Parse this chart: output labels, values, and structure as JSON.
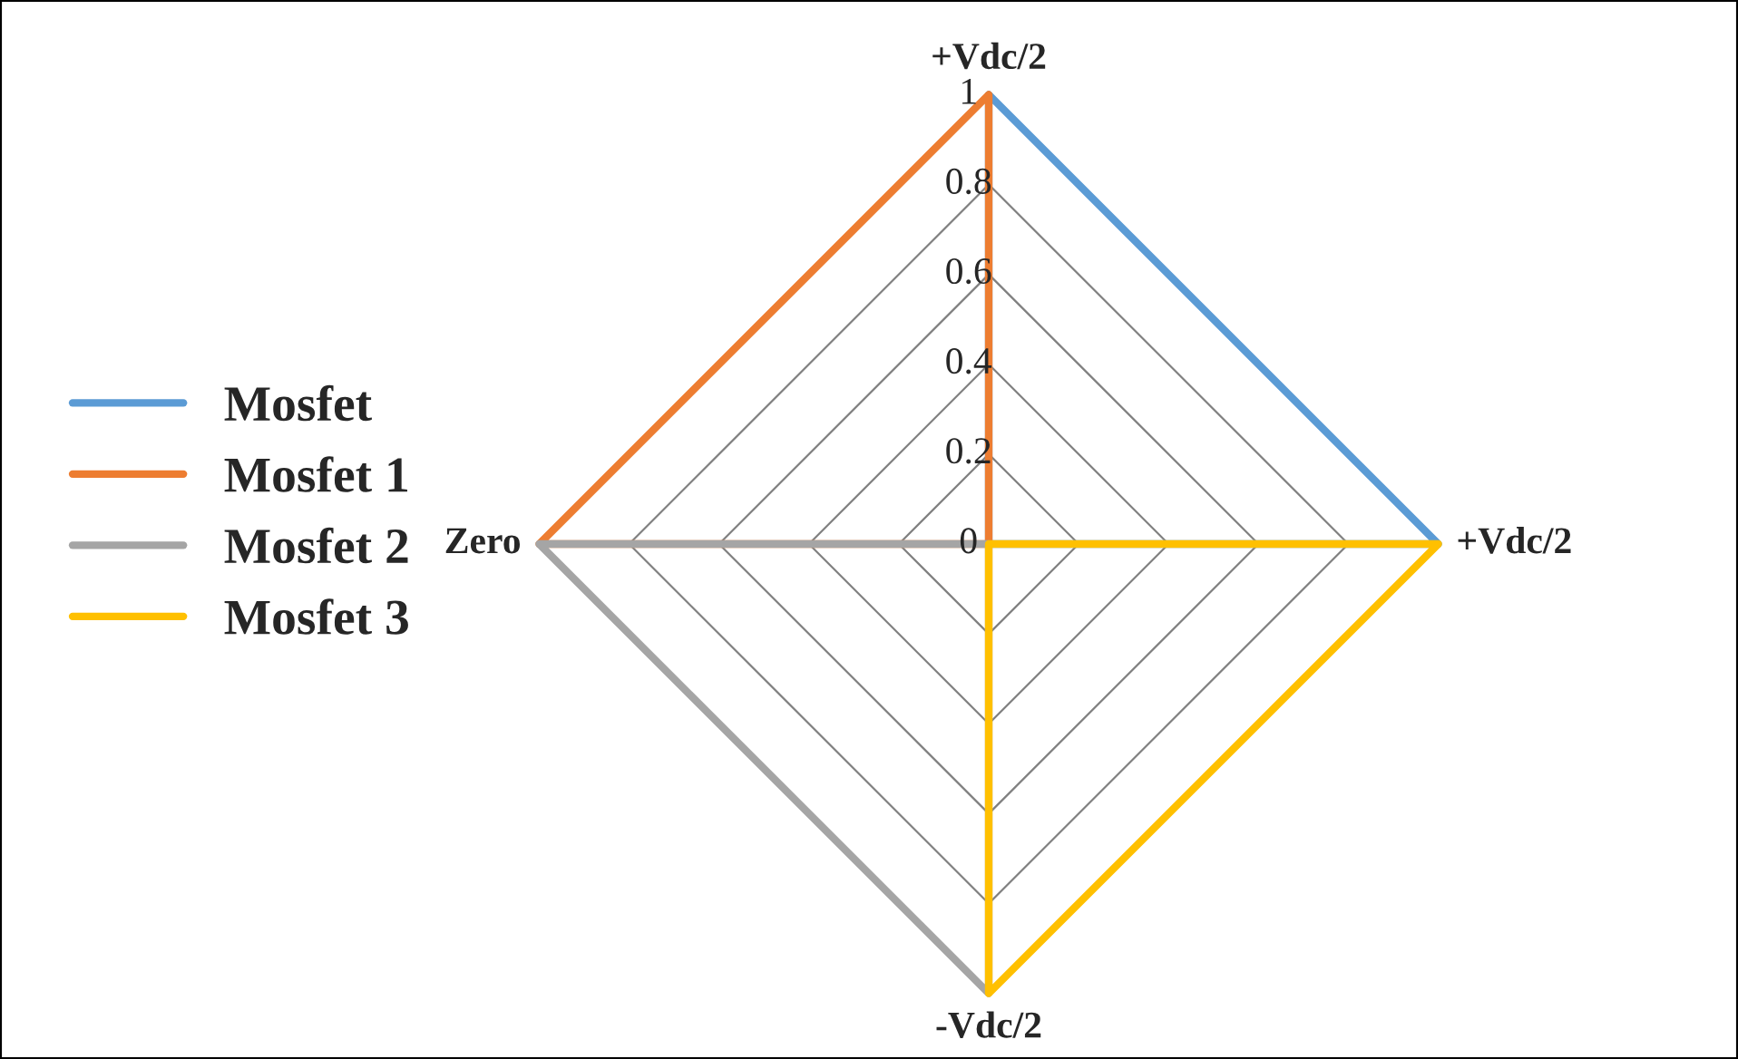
{
  "chart_data": {
    "type": "radar",
    "categories": [
      "+Vdc/2",
      "+Vdc/2",
      "-Vdc/2",
      "Zero"
    ],
    "series": [
      {
        "name": "Mosfet",
        "color": "#5b9bd5",
        "values": [
          1,
          1,
          0,
          0
        ]
      },
      {
        "name": "Mosfet 1",
        "color": "#ed7d31",
        "values": [
          1,
          0,
          0,
          1
        ]
      },
      {
        "name": "Mosfet 2",
        "color": "#a5a5a5",
        "values": [
          0,
          0,
          1,
          1
        ]
      },
      {
        "name": "Mosfet 3",
        "color": "#ffc000",
        "values": [
          0,
          1,
          1,
          0
        ]
      }
    ],
    "ylim": [
      0,
      1
    ],
    "yticks": [
      0,
      0.2,
      0.4,
      0.6,
      0.8,
      1
    ],
    "grid": true,
    "legend": "left",
    "marker": "none",
    "line_style": "solid"
  }
}
